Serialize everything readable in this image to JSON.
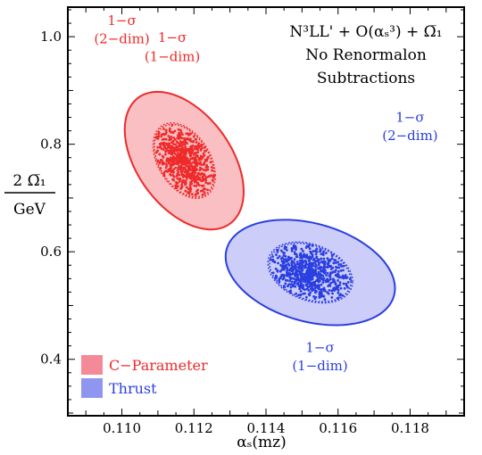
{
  "chart_data": {
    "type": "scatter",
    "title_lines": [
      "N³LL' + O(αₛ³) + Ω̅₁",
      "No Renormalon",
      "Subtractions"
    ],
    "xlabel": "αₛ(mᴢ)",
    "ylabel_top": "2 Ω̅₁",
    "ylabel_bottom": "GeV",
    "xlim": [
      0.1085,
      0.1195
    ],
    "ylim": [
      0.295,
      1.055
    ],
    "xticks": [
      "0.110",
      "0.112",
      "0.114",
      "0.116",
      "0.118"
    ],
    "xtick_values": [
      0.11,
      0.112,
      0.114,
      0.116,
      0.118
    ],
    "yticks": [
      "0.4",
      "0.6",
      "0.8",
      "1.0"
    ],
    "ytick_values": [
      0.4,
      0.6,
      0.8,
      1.0
    ],
    "grid": false,
    "legend_position": "bottom-left",
    "series": [
      {
        "name": "C−Parameter",
        "color": "#ee2a2a",
        "fill_color": "#f7a6aa",
        "best_fit": {
          "x": 0.11173,
          "y": 0.7695
        },
        "ellipse_1dim": {
          "cx": 0.11173,
          "cy": 0.7695,
          "sx": 0.00083,
          "sy": 0.0675,
          "rho": -0.4
        },
        "ellipse_2dim": {
          "cx": 0.11173,
          "cy": 0.7695,
          "sx": 0.00165,
          "sy": 0.128,
          "rho": -0.45
        },
        "labels": [
          {
            "text": "1−σ",
            "x": 0.11,
            "y": 1.022
          },
          {
            "text": "(2−dim)",
            "x": 0.11,
            "y": 0.988
          },
          {
            "text": "1−σ",
            "x": 0.1114,
            "y": 0.99
          },
          {
            "text": "(1−dim)",
            "x": 0.1114,
            "y": 0.955
          }
        ]
      },
      {
        "name": "Thrust",
        "color": "#2a3fe0",
        "fill_color": "#b9baf6",
        "best_fit": {
          "x": 0.11523,
          "y": 0.5615
        },
        "ellipse_1dim": {
          "cx": 0.11523,
          "cy": 0.5615,
          "sx": 0.00113,
          "sy": 0.0545,
          "rho": -0.3
        },
        "ellipse_2dim": {
          "cx": 0.11523,
          "cy": 0.5615,
          "sx": 0.00235,
          "sy": 0.098,
          "rho": -0.3
        },
        "labels": [
          {
            "text": "1−σ",
            "x": 0.118,
            "y": 0.842
          },
          {
            "text": "(2−dim)",
            "x": 0.118,
            "y": 0.808
          },
          {
            "text": "1−σ",
            "x": 0.1155,
            "y": 0.414
          },
          {
            "text": "(1−dim)",
            "x": 0.1155,
            "y": 0.38
          }
        ]
      }
    ]
  }
}
